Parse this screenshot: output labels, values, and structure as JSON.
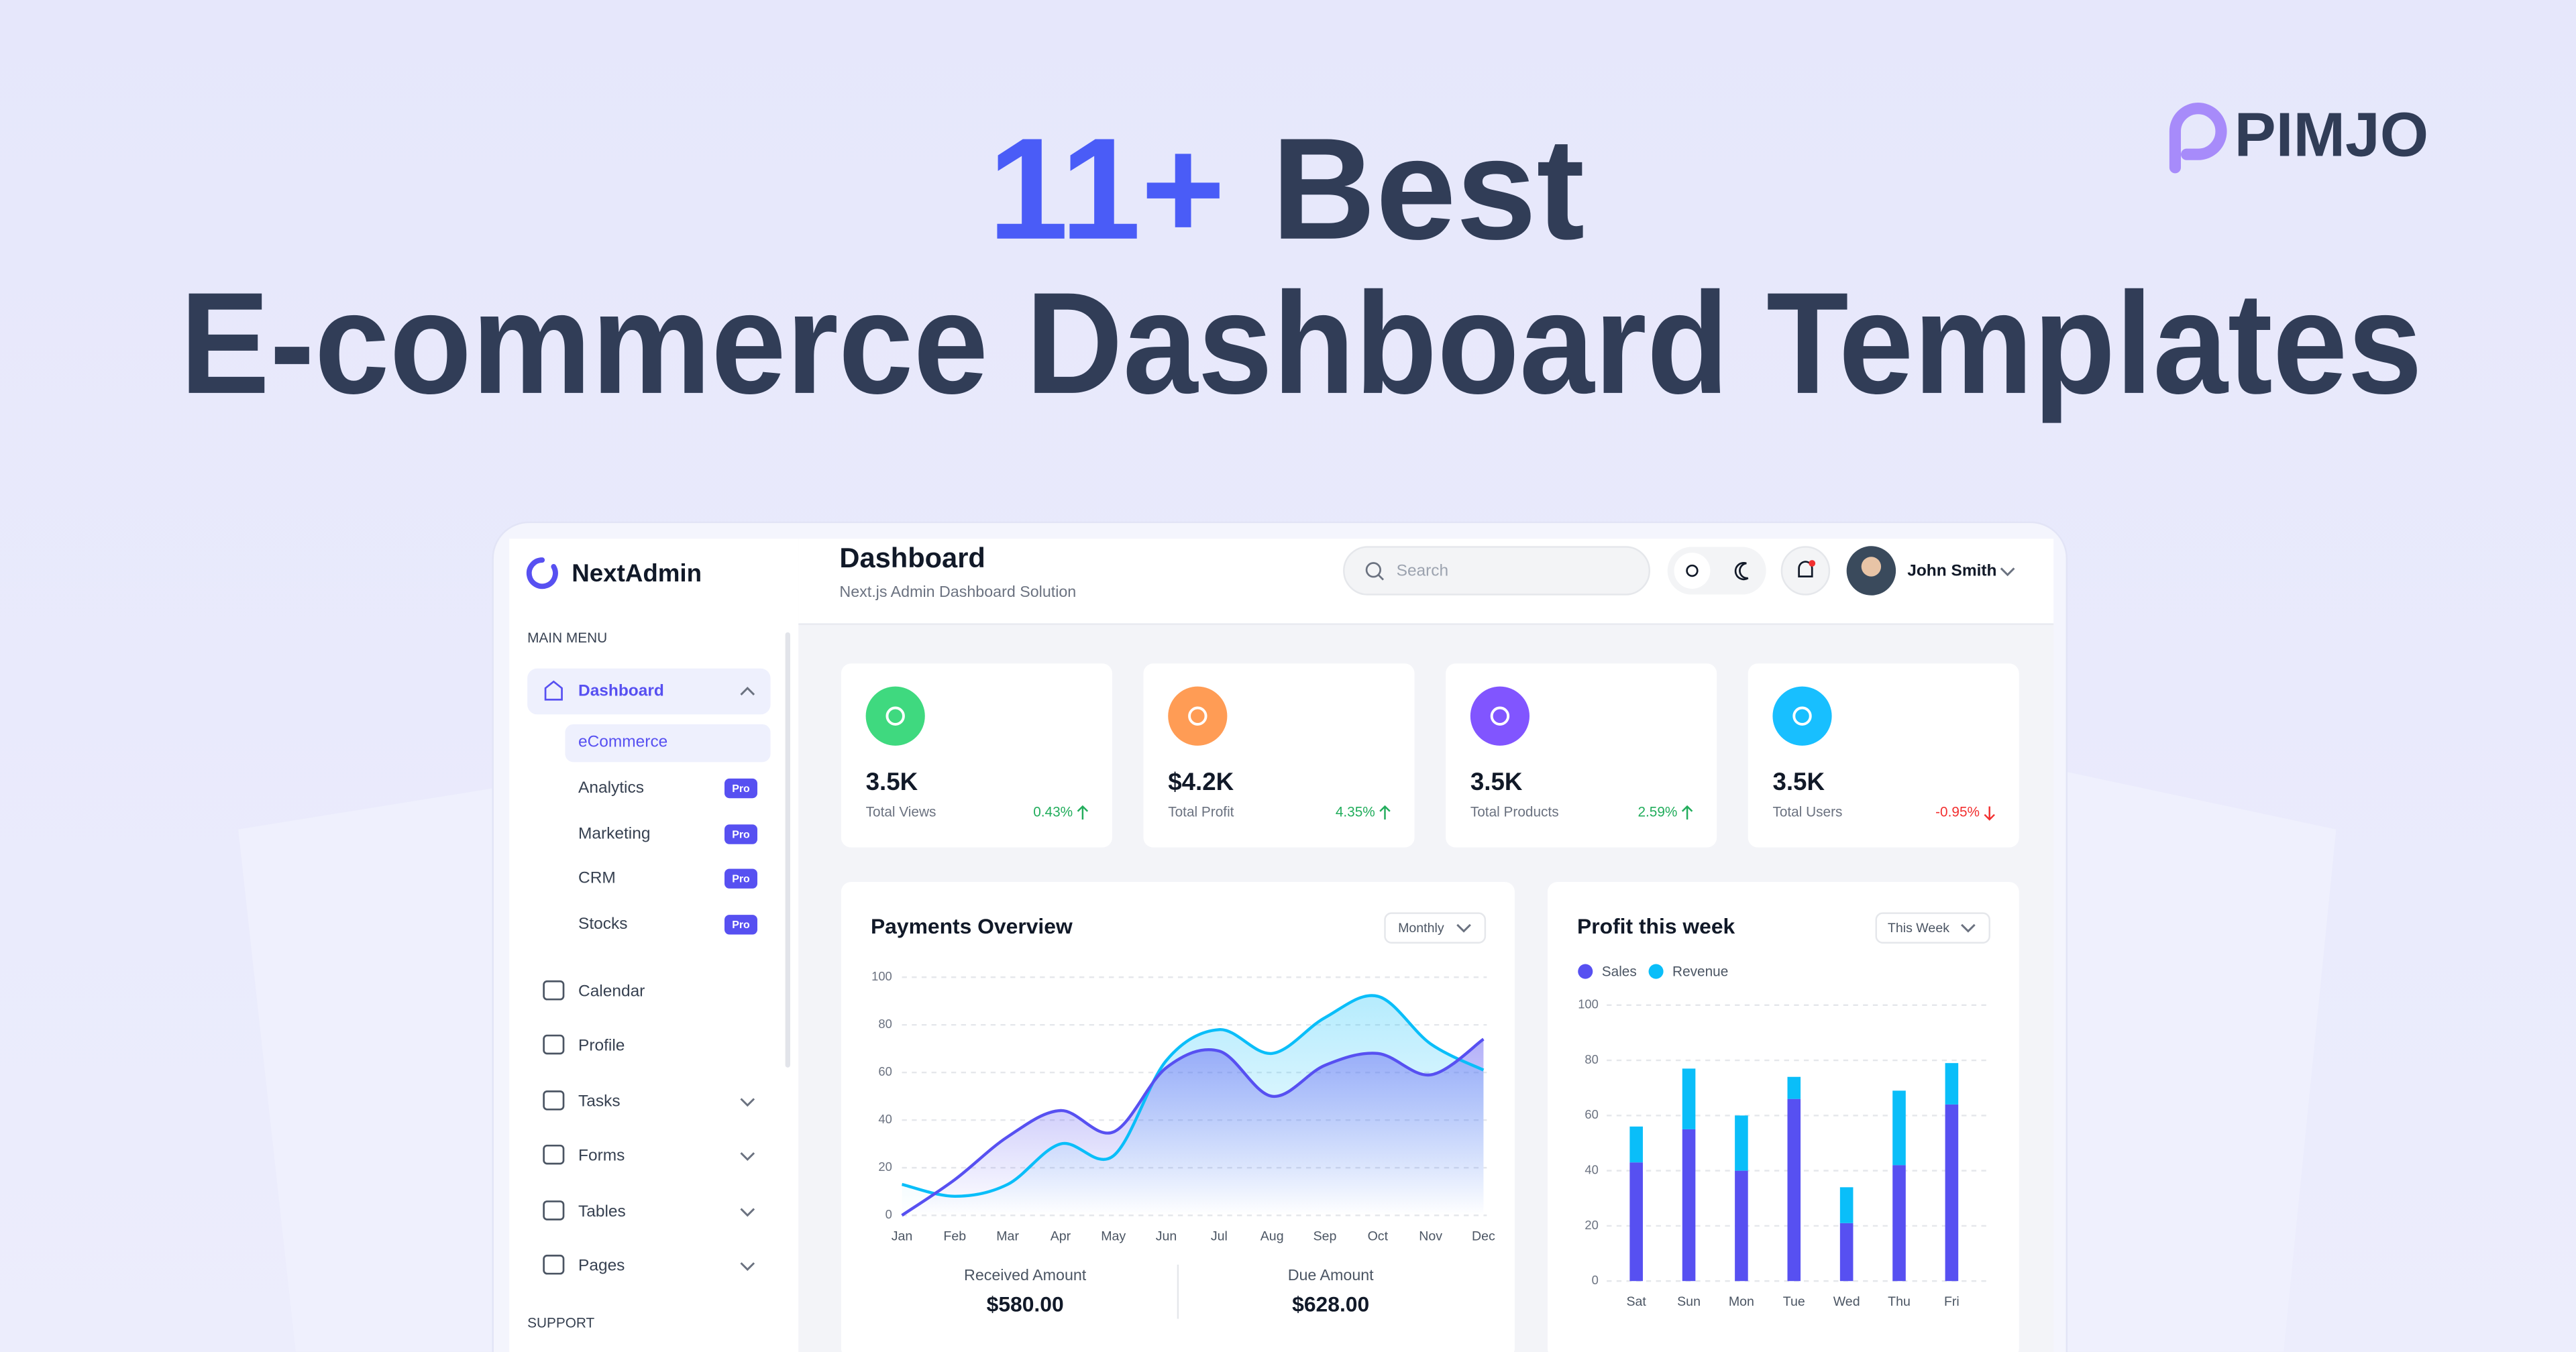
{
  "banner": {
    "title_accent": "11+",
    "title_rest": "Best",
    "title_line2": "E-commerce Dashboard Templates",
    "brand": "PIMJO"
  },
  "app": {
    "logo": "NextAdmin",
    "page_title": "Dashboard",
    "page_subtitle": "Next.js Admin Dashboard Solution",
    "search_placeholder": "Search",
    "user_name": "John Smith"
  },
  "sidebar": {
    "main_label": "MAIN MENU",
    "dashboard": "Dashboard",
    "submenu": [
      {
        "label": "eCommerce"
      },
      {
        "label": "Analytics",
        "badge": "Pro"
      },
      {
        "label": "Marketing",
        "badge": "Pro"
      },
      {
        "label": "CRM",
        "badge": "Pro"
      },
      {
        "label": "Stocks",
        "badge": "Pro"
      }
    ],
    "items": [
      "Calendar",
      "Profile",
      "Tasks",
      "Forms",
      "Tables",
      "Pages"
    ],
    "support_label": "SUPPORT"
  },
  "stats": [
    {
      "value": "3.5K",
      "label": "Total Views",
      "change": "0.43%",
      "color": "#3FD97F",
      "trend": "up"
    },
    {
      "value": "$4.2K",
      "label": "Total Profit",
      "change": "4.35%",
      "color": "#FF9C55",
      "trend": "up"
    },
    {
      "value": "3.5K",
      "label": "Total Products",
      "change": "2.59%",
      "color": "#8155FF",
      "trend": "up"
    },
    {
      "value": "3.5K",
      "label": "Total Users",
      "change": "-0.95%",
      "color": "#18BFFF",
      "trend": "down"
    }
  ],
  "payments": {
    "chart_data": {
      "type": "line",
      "title": "Payments Overview",
      "period": "Monthly",
      "categories": [
        "Jan",
        "Feb",
        "Mar",
        "Apr",
        "May",
        "Jun",
        "Jul",
        "Aug",
        "Sep",
        "Oct",
        "Nov",
        "Dec"
      ],
      "series": [
        {
          "color": "#0ABEF9",
          "values": [
            13,
            8,
            13,
            30,
            25,
            65,
            78,
            68,
            83,
            92,
            72,
            61
          ]
        },
        {
          "color": "#5750F1",
          "values": [
            0,
            15,
            33,
            44,
            35,
            62,
            69,
            50,
            63,
            68,
            59,
            74
          ]
        }
      ],
      "ylim": [
        0,
        100
      ],
      "yticks": [
        0,
        20,
        40,
        60,
        80,
        100
      ],
      "grid": true
    },
    "summary": [
      {
        "label": "Received Amount",
        "value": "$580.00"
      },
      {
        "label": "Due Amount",
        "value": "$628.00"
      }
    ]
  },
  "profit": {
    "chart_data": {
      "type": "stacked_bar",
      "title": "Profit this week",
      "period": "This Week",
      "categories": [
        "Sat",
        "Sun",
        "Mon",
        "Tue",
        "Wed",
        "Thu",
        "Fri"
      ],
      "series": [
        {
          "name": "Sales",
          "color": "#5750F1",
          "values": [
            43,
            55,
            40,
            66,
            21,
            42,
            64
          ]
        },
        {
          "name": "Revenue",
          "color": "#0ABEF9",
          "values": [
            13,
            22,
            20,
            8,
            13,
            27,
            15
          ]
        }
      ],
      "ylim": [
        0,
        100
      ],
      "yticks": [
        0,
        20,
        40,
        60,
        80,
        100
      ],
      "grid": true
    }
  }
}
